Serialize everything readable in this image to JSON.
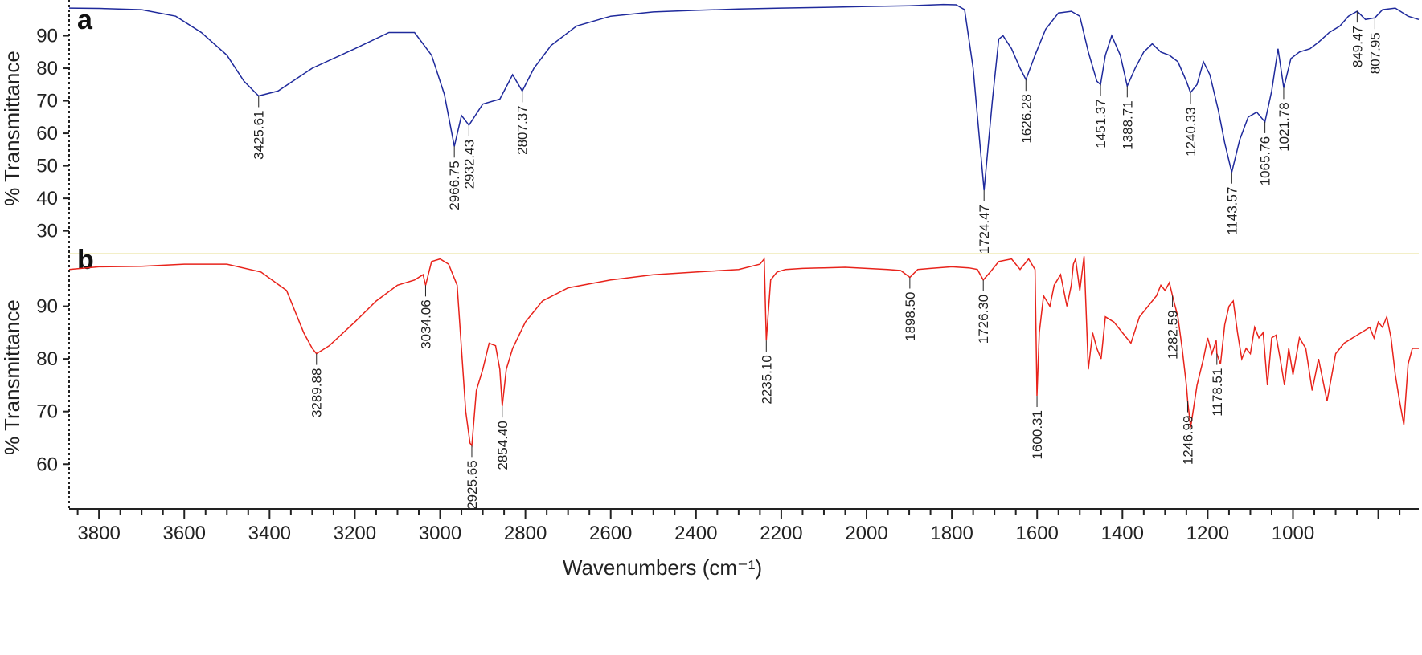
{
  "chart_data": [
    {
      "type": "line",
      "panel": "a",
      "color": "#1f2a9c",
      "xlabel": "Wavenumbers (cm⁻¹)",
      "ylabel": "% Transmittance",
      "xlim": [
        3870,
        705
      ],
      "ylim": [
        23,
        100
      ],
      "yticks": [
        30,
        40,
        50,
        60,
        70,
        80,
        90
      ],
      "x": [
        3870,
        3800,
        3700,
        3620,
        3560,
        3500,
        3460,
        3425.61,
        3380,
        3300,
        3200,
        3120,
        3060,
        3020,
        2990,
        2966.75,
        2950,
        2932.43,
        2900,
        2860,
        2830,
        2807.37,
        2780,
        2740,
        2680,
        2600,
        2500,
        2400,
        2300,
        2200,
        2100,
        2000,
        1900,
        1820,
        1790,
        1770,
        1750,
        1724.47,
        1705,
        1690,
        1680,
        1660,
        1640,
        1626.28,
        1605,
        1580,
        1550,
        1520,
        1500,
        1480,
        1460,
        1451.37,
        1440,
        1425,
        1405,
        1388.71,
        1370,
        1350,
        1330,
        1310,
        1290,
        1270,
        1250,
        1240.33,
        1225,
        1210,
        1195,
        1175,
        1160,
        1143.57,
        1125,
        1105,
        1085,
        1065.76,
        1050,
        1035,
        1021.78,
        1005,
        985,
        960,
        940,
        915,
        890,
        870,
        849.47,
        830,
        807.95,
        790,
        760,
        730,
        705
      ],
      "y": [
        98.5,
        98.4,
        98.0,
        96.0,
        91.0,
        84.0,
        76.0,
        71.5,
        73.0,
        80.0,
        86.0,
        91.0,
        91.0,
        84.0,
        72.0,
        56.0,
        65.5,
        62.5,
        69.0,
        70.5,
        78.0,
        73.0,
        80.0,
        87.0,
        93.0,
        96.0,
        97.3,
        97.8,
        98.2,
        98.5,
        98.7,
        99.0,
        99.2,
        99.6,
        99.5,
        98.0,
        80.0,
        42.5,
        70.0,
        89.0,
        90.0,
        86.0,
        80.0,
        76.5,
        84.0,
        92.0,
        97.0,
        97.5,
        96.0,
        85.0,
        76.0,
        75.0,
        84.0,
        90.0,
        84.0,
        74.5,
        80.0,
        85.0,
        87.5,
        85.0,
        84.0,
        82.0,
        76.0,
        72.5,
        75.0,
        82.0,
        78.0,
        67.0,
        57.0,
        48.0,
        58.0,
        65.0,
        66.5,
        63.5,
        73.0,
        86.0,
        74.0,
        83.0,
        85.0,
        86.0,
        88.0,
        91.0,
        93.0,
        96.0,
        97.5,
        95.0,
        95.5,
        98.0,
        98.5,
        96.0,
        95.0
      ],
      "peak_labels": [
        {
          "x": 3425.61,
          "label": "3425.61"
        },
        {
          "x": 2966.75,
          "label": "2966.75"
        },
        {
          "x": 2932.43,
          "label": "2932.43"
        },
        {
          "x": 2807.37,
          "label": "2807.37"
        },
        {
          "x": 1724.47,
          "label": "1724.47"
        },
        {
          "x": 1626.28,
          "label": "1626.28"
        },
        {
          "x": 1451.37,
          "label": "1451.37"
        },
        {
          "x": 1388.71,
          "label": "1388.71"
        },
        {
          "x": 1240.33,
          "label": "1240.33"
        },
        {
          "x": 1143.57,
          "label": "1143.57"
        },
        {
          "x": 1065.76,
          "label": "1065.76"
        },
        {
          "x": 1021.78,
          "label": "1021.78"
        },
        {
          "x": 849.47,
          "label": "849.47"
        },
        {
          "x": 807.95,
          "label": "807.95"
        }
      ]
    },
    {
      "type": "line",
      "panel": "b",
      "color": "#e8231b",
      "xlabel": "Wavenumbers (cm⁻¹)",
      "ylabel": "% Transmittance",
      "xlim": [
        3870,
        705
      ],
      "ylim": [
        51.5,
        100
      ],
      "yticks": [
        60,
        70,
        80,
        90
      ],
      "x": [
        3870,
        3800,
        3700,
        3600,
        3500,
        3420,
        3360,
        3320,
        3300,
        3289.88,
        3260,
        3200,
        3150,
        3100,
        3060,
        3040,
        3034.06,
        3020,
        3000,
        2980,
        2960,
        2940,
        2930,
        2925.65,
        2915,
        2900,
        2885,
        2870,
        2860,
        2854.4,
        2845,
        2830,
        2800,
        2760,
        2700,
        2600,
        2500,
        2400,
        2300,
        2250,
        2240,
        2235.1,
        2225,
        2210,
        2190,
        2150,
        2100,
        2050,
        2000,
        1950,
        1920,
        1898.5,
        1880,
        1850,
        1800,
        1760,
        1740,
        1726.3,
        1710,
        1690,
        1660,
        1640,
        1620,
        1605,
        1600.31,
        1595,
        1585,
        1570,
        1560,
        1545,
        1530,
        1520,
        1515,
        1510,
        1500,
        1490,
        1480,
        1470,
        1460,
        1450,
        1440,
        1420,
        1400,
        1380,
        1360,
        1340,
        1320,
        1310,
        1300,
        1290,
        1282.59,
        1270,
        1260,
        1250,
        1246.99,
        1240,
        1225,
        1210,
        1200,
        1190,
        1180,
        1178.51,
        1170,
        1160,
        1150,
        1140,
        1130,
        1120,
        1110,
        1100,
        1090,
        1080,
        1070,
        1060,
        1050,
        1040,
        1030,
        1020,
        1010,
        1000,
        985,
        970,
        955,
        940,
        920,
        900,
        880,
        860,
        840,
        820,
        810,
        800,
        790,
        780,
        770,
        760,
        750,
        740,
        730,
        720,
        705
      ],
      "y": [
        97.0,
        97.5,
        97.6,
        98.0,
        98.0,
        96.5,
        93.0,
        85.0,
        82.0,
        81.0,
        82.5,
        87.0,
        91.0,
        94.0,
        95.0,
        96.0,
        94.0,
        98.5,
        99.0,
        98.0,
        94.0,
        70.0,
        64.0,
        63.5,
        74.0,
        78.0,
        83.0,
        82.5,
        78.0,
        71.0,
        78.0,
        82.0,
        87.0,
        91.0,
        93.5,
        95.0,
        96.0,
        96.5,
        97.0,
        98.0,
        99.0,
        83.5,
        95.0,
        96.5,
        97.0,
        97.2,
        97.3,
        97.4,
        97.2,
        97.0,
        96.8,
        95.5,
        97.0,
        97.2,
        97.5,
        97.3,
        97.0,
        95.0,
        96.5,
        98.5,
        99.0,
        97.0,
        99.0,
        97.0,
        73.0,
        85.0,
        92.0,
        90.0,
        94.0,
        96.0,
        90.0,
        94.0,
        98.0,
        99.0,
        93.0,
        99.5,
        78.0,
        85.0,
        82.0,
        80.0,
        88.0,
        87.0,
        85.0,
        83.0,
        88.0,
        90.0,
        92.0,
        94.0,
        93.0,
        94.5,
        92.0,
        88.0,
        82.0,
        75.0,
        72.0,
        67.0,
        75.0,
        80.0,
        84.0,
        81.0,
        83.5,
        81.0,
        79.0,
        86.5,
        90.0,
        91.0,
        85.0,
        80.0,
        82.0,
        81.0,
        86.0,
        84.0,
        85.0,
        75.0,
        84.0,
        84.5,
        80.0,
        75.0,
        82.0,
        77.0,
        84.0,
        82.0,
        74.0,
        80.0,
        72.0,
        81.0,
        83.0,
        84.0,
        85.0,
        86.0,
        84.0,
        87.0,
        86.0,
        88.0,
        84.0,
        77.0,
        72.0,
        67.5,
        79.0,
        82.0,
        82.0
      ],
      "peak_labels": [
        {
          "x": 3289.88,
          "label": "3289.88"
        },
        {
          "x": 3034.06,
          "label": "3034.06"
        },
        {
          "x": 2925.65,
          "label": "2925.65"
        },
        {
          "x": 2854.4,
          "label": "2854.40"
        },
        {
          "x": 2235.1,
          "label": "2235.10"
        },
        {
          "x": 1898.5,
          "label": "1898.50"
        },
        {
          "x": 1726.3,
          "label": "1726.30"
        },
        {
          "x": 1600.31,
          "label": "1600.31"
        },
        {
          "x": 1282.59,
          "label": "1282.59"
        },
        {
          "x": 1246.99,
          "label": "1246.99"
        },
        {
          "x": 1178.51,
          "label": "1178.51"
        }
      ]
    }
  ],
  "xaxis": {
    "ticks": [
      3800,
      3600,
      3400,
      3200,
      3000,
      2800,
      2600,
      2400,
      2200,
      2000,
      1800,
      1600,
      1400,
      1200,
      1000
    ],
    "title": "Wavenumbers (cm⁻¹)"
  },
  "colors": {
    "panel_a": "#1f2a9c",
    "panel_b": "#e8231b",
    "divider": "#f3efc8",
    "axis": "#222222"
  }
}
